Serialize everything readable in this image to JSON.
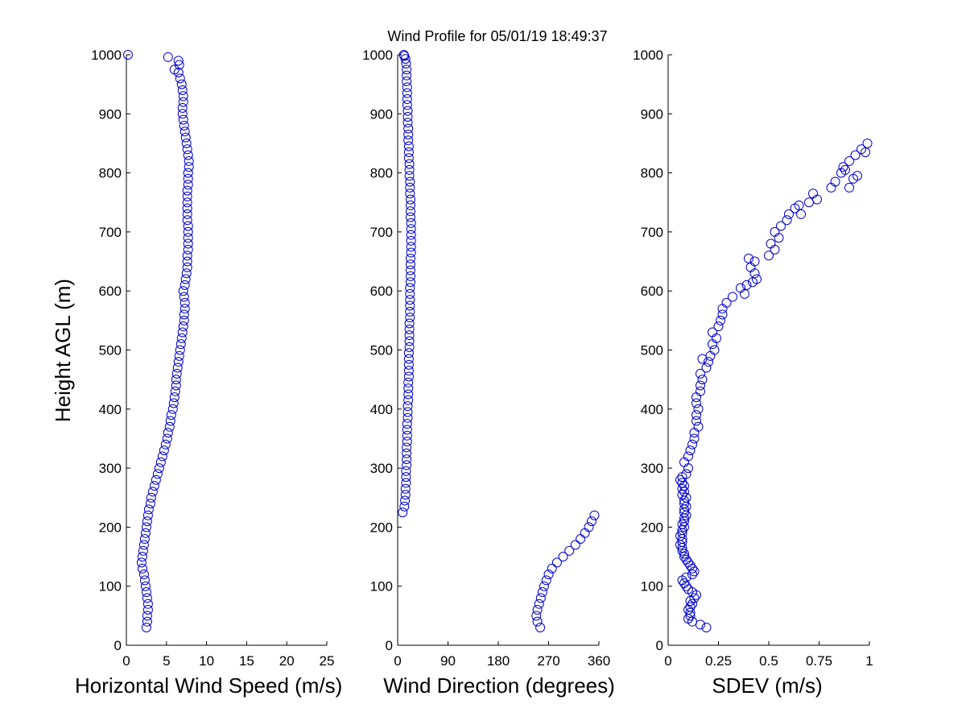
{
  "title": "Wind Profile for  05/01/19 18:49:37",
  "chart_data": [
    {
      "type": "scatter",
      "name": "speed",
      "xlabel": "Horizontal Wind Speed (m/s)",
      "ylabel": "Height AGL (m)",
      "xlim": [
        0,
        25
      ],
      "ylim": [
        0,
        1000
      ],
      "xticks": [
        "0",
        "5",
        "10",
        "15",
        "20",
        "25"
      ],
      "xtick_values": [
        0,
        5,
        10,
        15,
        20,
        25
      ],
      "yticks": [
        "0",
        "100",
        "200",
        "300",
        "400",
        "500",
        "600",
        "700",
        "800",
        "900",
        "1000"
      ],
      "ytick_values": [
        0,
        100,
        200,
        300,
        400,
        500,
        600,
        700,
        800,
        900,
        1000
      ],
      "grid": false,
      "points": [
        [
          2.5,
          30
        ],
        [
          2.6,
          40
        ],
        [
          2.6,
          50
        ],
        [
          2.7,
          60
        ],
        [
          2.7,
          70
        ],
        [
          2.6,
          80
        ],
        [
          2.5,
          90
        ],
        [
          2.4,
          100
        ],
        [
          2.3,
          110
        ],
        [
          2.2,
          120
        ],
        [
          2.0,
          130
        ],
        [
          1.9,
          140
        ],
        [
          2.0,
          150
        ],
        [
          2.1,
          160
        ],
        [
          2.2,
          170
        ],
        [
          2.3,
          180
        ],
        [
          2.4,
          190
        ],
        [
          2.5,
          200
        ],
        [
          2.6,
          210
        ],
        [
          2.7,
          220
        ],
        [
          2.8,
          230
        ],
        [
          3.0,
          240
        ],
        [
          3.1,
          250
        ],
        [
          3.3,
          260
        ],
        [
          3.5,
          270
        ],
        [
          3.7,
          280
        ],
        [
          3.9,
          290
        ],
        [
          4.1,
          300
        ],
        [
          4.3,
          310
        ],
        [
          4.5,
          320
        ],
        [
          4.7,
          330
        ],
        [
          4.9,
          340
        ],
        [
          5.1,
          350
        ],
        [
          5.2,
          360
        ],
        [
          5.4,
          370
        ],
        [
          5.5,
          380
        ],
        [
          5.6,
          390
        ],
        [
          5.8,
          400
        ],
        [
          5.9,
          410
        ],
        [
          6.0,
          420
        ],
        [
          6.1,
          430
        ],
        [
          6.2,
          440
        ],
        [
          6.2,
          450
        ],
        [
          6.3,
          460
        ],
        [
          6.4,
          470
        ],
        [
          6.5,
          480
        ],
        [
          6.6,
          490
        ],
        [
          6.7,
          500
        ],
        [
          6.8,
          510
        ],
        [
          6.9,
          520
        ],
        [
          7.0,
          530
        ],
        [
          7.1,
          540
        ],
        [
          7.2,
          550
        ],
        [
          7.2,
          560
        ],
        [
          7.3,
          570
        ],
        [
          7.3,
          580
        ],
        [
          7.2,
          590
        ],
        [
          7.1,
          600
        ],
        [
          7.3,
          610
        ],
        [
          7.4,
          620
        ],
        [
          7.5,
          630
        ],
        [
          7.6,
          640
        ],
        [
          7.6,
          650
        ],
        [
          7.6,
          660
        ],
        [
          7.7,
          670
        ],
        [
          7.7,
          680
        ],
        [
          7.7,
          690
        ],
        [
          7.7,
          700
        ],
        [
          7.7,
          710
        ],
        [
          7.6,
          720
        ],
        [
          7.6,
          730
        ],
        [
          7.6,
          740
        ],
        [
          7.6,
          750
        ],
        [
          7.6,
          760
        ],
        [
          7.6,
          770
        ],
        [
          7.7,
          780
        ],
        [
          7.7,
          790
        ],
        [
          7.7,
          800
        ],
        [
          7.8,
          810
        ],
        [
          7.8,
          820
        ],
        [
          7.7,
          830
        ],
        [
          7.6,
          840
        ],
        [
          7.5,
          850
        ],
        [
          7.4,
          860
        ],
        [
          7.3,
          870
        ],
        [
          7.2,
          880
        ],
        [
          7.1,
          890
        ],
        [
          7.0,
          900
        ],
        [
          7.0,
          910
        ],
        [
          7.1,
          920
        ],
        [
          7.1,
          930
        ],
        [
          7.0,
          940
        ],
        [
          6.9,
          950
        ],
        [
          6.7,
          960
        ],
        [
          6.5,
          970
        ],
        [
          6.0,
          975
        ],
        [
          6.6,
          983
        ],
        [
          6.5,
          990
        ],
        [
          5.2,
          996
        ],
        [
          0.2,
          1000
        ]
      ]
    },
    {
      "type": "scatter",
      "name": "direction",
      "xlabel": "Wind Direction (degrees)",
      "xlim": [
        0,
        360
      ],
      "ylim": [
        0,
        1000
      ],
      "xticks": [
        "0",
        "90",
        "180",
        "270",
        "360"
      ],
      "xtick_values": [
        0,
        90,
        180,
        270,
        360
      ],
      "yticks": [
        "0",
        "100",
        "200",
        "300",
        "400",
        "500",
        "600",
        "700",
        "800",
        "900",
        "1000"
      ],
      "ytick_values": [
        0,
        100,
        200,
        300,
        400,
        500,
        600,
        700,
        800,
        900,
        1000
      ],
      "grid": false,
      "points": [
        [
          255,
          30
        ],
        [
          250,
          40
        ],
        [
          248,
          50
        ],
        [
          250,
          60
        ],
        [
          253,
          70
        ],
        [
          256,
          80
        ],
        [
          259,
          90
        ],
        [
          262,
          100
        ],
        [
          266,
          110
        ],
        [
          270,
          120
        ],
        [
          276,
          130
        ],
        [
          285,
          140
        ],
        [
          296,
          150
        ],
        [
          307,
          160
        ],
        [
          318,
          170
        ],
        [
          327,
          180
        ],
        [
          335,
          190
        ],
        [
          342,
          200
        ],
        [
          347,
          210
        ],
        [
          352,
          220
        ],
        [
          9,
          225
        ],
        [
          12,
          235
        ],
        [
          13,
          245
        ],
        [
          14,
          255
        ],
        [
          14,
          265
        ],
        [
          15,
          275
        ],
        [
          15,
          285
        ],
        [
          15,
          295
        ],
        [
          16,
          305
        ],
        [
          16,
          315
        ],
        [
          16,
          325
        ],
        [
          16,
          335
        ],
        [
          17,
          345
        ],
        [
          17,
          355
        ],
        [
          17,
          365
        ],
        [
          17,
          375
        ],
        [
          18,
          385
        ],
        [
          18,
          395
        ],
        [
          18,
          405
        ],
        [
          19,
          415
        ],
        [
          19,
          425
        ],
        [
          19,
          435
        ],
        [
          19,
          445
        ],
        [
          20,
          455
        ],
        [
          20,
          465
        ],
        [
          20,
          475
        ],
        [
          20,
          485
        ],
        [
          20,
          495
        ],
        [
          21,
          505
        ],
        [
          21,
          515
        ],
        [
          21,
          525
        ],
        [
          21,
          535
        ],
        [
          21,
          545
        ],
        [
          22,
          555
        ],
        [
          22,
          565
        ],
        [
          22,
          575
        ],
        [
          22,
          585
        ],
        [
          22,
          595
        ],
        [
          22,
          605
        ],
        [
          23,
          615
        ],
        [
          23,
          625
        ],
        [
          23,
          635
        ],
        [
          23,
          645
        ],
        [
          23,
          655
        ],
        [
          24,
          665
        ],
        [
          24,
          675
        ],
        [
          24,
          685
        ],
        [
          24,
          695
        ],
        [
          24,
          705
        ],
        [
          24,
          715
        ],
        [
          23,
          725
        ],
        [
          23,
          735
        ],
        [
          23,
          745
        ],
        [
          23,
          755
        ],
        [
          22,
          765
        ],
        [
          22,
          775
        ],
        [
          22,
          785
        ],
        [
          21,
          795
        ],
        [
          21,
          805
        ],
        [
          21,
          815
        ],
        [
          20,
          825
        ],
        [
          20,
          835
        ],
        [
          20,
          845
        ],
        [
          19,
          855
        ],
        [
          19,
          865
        ],
        [
          19,
          875
        ],
        [
          18,
          885
        ],
        [
          18,
          895
        ],
        [
          18,
          905
        ],
        [
          17,
          915
        ],
        [
          17,
          925
        ],
        [
          17,
          935
        ],
        [
          17,
          945
        ],
        [
          16,
          955
        ],
        [
          16,
          965
        ],
        [
          16,
          975
        ],
        [
          15,
          985
        ],
        [
          14,
          993
        ],
        [
          12,
          998
        ],
        [
          11,
          1000
        ]
      ]
    },
    {
      "type": "scatter",
      "name": "sdev",
      "xlabel": "SDEV  (m/s)",
      "xlim": [
        0,
        1
      ],
      "ylim": [
        0,
        1000
      ],
      "xticks": [
        "0",
        "0.25",
        "0.5",
        "0.75",
        "1"
      ],
      "xtick_values": [
        0,
        0.25,
        0.5,
        0.75,
        1
      ],
      "yticks": [
        "0",
        "100",
        "200",
        "300",
        "400",
        "500",
        "600",
        "700",
        "800",
        "900",
        "1000"
      ],
      "ytick_values": [
        0,
        100,
        200,
        300,
        400,
        500,
        600,
        700,
        800,
        900,
        1000
      ],
      "grid": false,
      "points": [
        [
          0.19,
          30
        ],
        [
          0.16,
          35
        ],
        [
          0.12,
          40
        ],
        [
          0.1,
          45
        ],
        [
          0.11,
          50
        ],
        [
          0.11,
          55
        ],
        [
          0.1,
          60
        ],
        [
          0.11,
          65
        ],
        [
          0.12,
          70
        ],
        [
          0.11,
          75
        ],
        [
          0.13,
          80
        ],
        [
          0.14,
          85
        ],
        [
          0.12,
          90
        ],
        [
          0.1,
          95
        ],
        [
          0.09,
          100
        ],
        [
          0.08,
          105
        ],
        [
          0.07,
          110
        ],
        [
          0.09,
          115
        ],
        [
          0.12,
          120
        ],
        [
          0.13,
          125
        ],
        [
          0.12,
          130
        ],
        [
          0.11,
          135
        ],
        [
          0.1,
          140
        ],
        [
          0.09,
          145
        ],
        [
          0.08,
          150
        ],
        [
          0.08,
          155
        ],
        [
          0.07,
          160
        ],
        [
          0.07,
          165
        ],
        [
          0.06,
          170
        ],
        [
          0.07,
          175
        ],
        [
          0.07,
          180
        ],
        [
          0.06,
          185
        ],
        [
          0.07,
          190
        ],
        [
          0.07,
          195
        ],
        [
          0.08,
          200
        ],
        [
          0.07,
          205
        ],
        [
          0.08,
          210
        ],
        [
          0.08,
          215
        ],
        [
          0.09,
          220
        ],
        [
          0.08,
          225
        ],
        [
          0.08,
          230
        ],
        [
          0.09,
          235
        ],
        [
          0.08,
          240
        ],
        [
          0.08,
          245
        ],
        [
          0.09,
          250
        ],
        [
          0.07,
          255
        ],
        [
          0.08,
          260
        ],
        [
          0.07,
          265
        ],
        [
          0.08,
          270
        ],
        [
          0.07,
          275
        ],
        [
          0.06,
          280
        ],
        [
          0.07,
          285
        ],
        [
          0.09,
          290
        ],
        [
          0.1,
          300
        ],
        [
          0.08,
          310
        ],
        [
          0.1,
          320
        ],
        [
          0.11,
          330
        ],
        [
          0.12,
          340
        ],
        [
          0.13,
          350
        ],
        [
          0.13,
          360
        ],
        [
          0.15,
          370
        ],
        [
          0.14,
          380
        ],
        [
          0.14,
          390
        ],
        [
          0.15,
          400
        ],
        [
          0.14,
          410
        ],
        [
          0.14,
          420
        ],
        [
          0.16,
          430
        ],
        [
          0.16,
          440
        ],
        [
          0.17,
          450
        ],
        [
          0.16,
          460
        ],
        [
          0.19,
          470
        ],
        [
          0.2,
          480
        ],
        [
          0.17,
          485
        ],
        [
          0.21,
          490
        ],
        [
          0.23,
          500
        ],
        [
          0.22,
          510
        ],
        [
          0.24,
          520
        ],
        [
          0.22,
          530
        ],
        [
          0.25,
          540
        ],
        [
          0.26,
          550
        ],
        [
          0.27,
          560
        ],
        [
          0.27,
          570
        ],
        [
          0.29,
          580
        ],
        [
          0.32,
          590
        ],
        [
          0.38,
          595
        ],
        [
          0.36,
          605
        ],
        [
          0.39,
          610
        ],
        [
          0.42,
          615
        ],
        [
          0.44,
          620
        ],
        [
          0.43,
          630
        ],
        [
          0.41,
          640
        ],
        [
          0.43,
          650
        ],
        [
          0.4,
          655
        ],
        [
          0.5,
          660
        ],
        [
          0.53,
          670
        ],
        [
          0.51,
          680
        ],
        [
          0.55,
          690
        ],
        [
          0.53,
          700
        ],
        [
          0.56,
          710
        ],
        [
          0.59,
          720
        ],
        [
          0.6,
          730
        ],
        [
          0.63,
          740
        ],
        [
          0.65,
          745
        ],
        [
          0.66,
          730
        ],
        [
          0.7,
          750
        ],
        [
          0.72,
          765
        ],
        [
          0.74,
          755
        ],
        [
          0.81,
          775
        ],
        [
          0.83,
          785
        ],
        [
          0.86,
          800
        ],
        [
          0.88,
          805
        ],
        [
          0.9,
          775
        ],
        [
          0.92,
          790
        ],
        [
          0.94,
          795
        ],
        [
          0.87,
          810
        ],
        [
          0.9,
          820
        ],
        [
          0.93,
          830
        ],
        [
          0.96,
          840
        ],
        [
          0.98,
          835
        ],
        [
          0.99,
          850
        ]
      ]
    }
  ]
}
